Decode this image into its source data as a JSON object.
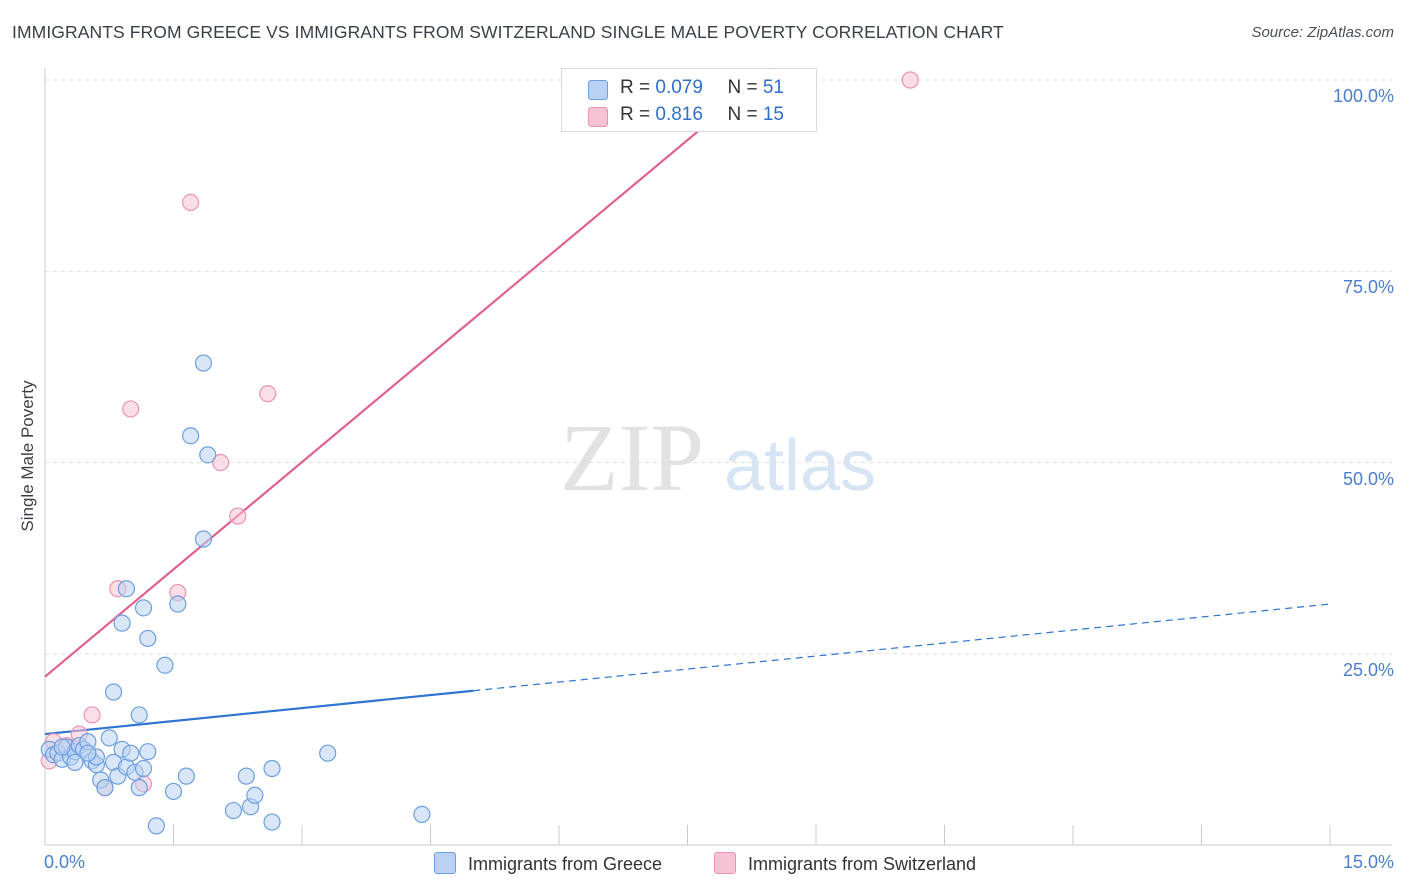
{
  "title": "IMMIGRANTS FROM GREECE VS IMMIGRANTS FROM SWITZERLAND SINGLE MALE POVERTY CORRELATION CHART",
  "source": "Source: ZipAtlas.com",
  "watermark": {
    "zip": "ZIP",
    "atlas": "atlas"
  },
  "colors": {
    "greece": "#2f74d0",
    "greece_fill": "#b9d2f3",
    "switzerland": "#e0608f",
    "switzerland_fill": "#f7c2d3",
    "axis_text": "#4a7fd0"
  },
  "legend": {
    "rows": [
      {
        "r_label": "R = ",
        "r_value": "0.079",
        "n_label": "N = ",
        "n_value": "51"
      },
      {
        "r_label": "R = ",
        "r_value": "0.816",
        "n_label": "N = ",
        "n_value": "15"
      }
    ]
  },
  "chart_data": {
    "type": "scatter",
    "xlabel": "",
    "ylabel": "Single Male Poverty",
    "xlim": [
      0,
      15
    ],
    "ylim": [
      0,
      100
    ],
    "x_tick_labels": [
      "0.0%",
      "15.0%"
    ],
    "y_tick_labels": [
      "25.0%",
      "50.0%",
      "75.0%",
      "100.0%"
    ],
    "y_ticks": [
      25,
      50,
      75,
      100
    ],
    "series": [
      {
        "name": "Immigrants from Greece",
        "points": [
          [
            0.05,
            12.5
          ],
          [
            0.1,
            11.8
          ],
          [
            0.15,
            12.0
          ],
          [
            0.2,
            11.2
          ],
          [
            0.25,
            12.8
          ],
          [
            0.3,
            11.5
          ],
          [
            0.35,
            12.2
          ],
          [
            0.4,
            13.0
          ],
          [
            0.45,
            12.5
          ],
          [
            0.5,
            13.5
          ],
          [
            0.55,
            11.0
          ],
          [
            0.6,
            10.5
          ],
          [
            0.65,
            8.5
          ],
          [
            0.7,
            7.5
          ],
          [
            0.75,
            14.0
          ],
          [
            0.8,
            10.8
          ],
          [
            0.85,
            9.0
          ],
          [
            0.9,
            12.5
          ],
          [
            0.95,
            10.2
          ],
          [
            1.0,
            12.0
          ],
          [
            1.05,
            9.5
          ],
          [
            1.1,
            7.5
          ],
          [
            1.15,
            10.0
          ],
          [
            1.2,
            12.2
          ],
          [
            0.8,
            20.0
          ],
          [
            1.1,
            17.0
          ],
          [
            0.9,
            29.0
          ],
          [
            0.95,
            33.5
          ],
          [
            1.15,
            31.0
          ],
          [
            1.2,
            27.0
          ],
          [
            1.4,
            23.5
          ],
          [
            1.55,
            31.5
          ],
          [
            1.7,
            53.5
          ],
          [
            1.85,
            40.0
          ],
          [
            1.9,
            51.0
          ],
          [
            1.85,
            63.0
          ],
          [
            1.3,
            2.5
          ],
          [
            1.5,
            7.0
          ],
          [
            1.65,
            9.0
          ],
          [
            2.2,
            4.5
          ],
          [
            2.35,
            9.0
          ],
          [
            2.4,
            5.0
          ],
          [
            2.45,
            6.5
          ],
          [
            2.65,
            3.0
          ],
          [
            2.65,
            10.0
          ],
          [
            3.3,
            12.0
          ],
          [
            4.4,
            4.0
          ],
          [
            0.6,
            11.5
          ],
          [
            0.35,
            10.8
          ],
          [
            0.2,
            12.8
          ],
          [
            0.5,
            12.0
          ]
        ],
        "trend": {
          "x0": 0,
          "y0": 14.5,
          "x1": 15,
          "y1": 31.5,
          "solid_until_x": 5.0
        }
      },
      {
        "name": "Immigrants from Switzerland",
        "points": [
          [
            0.05,
            11.0
          ],
          [
            0.1,
            13.5
          ],
          [
            0.25,
            13.0
          ],
          [
            0.4,
            14.5
          ],
          [
            0.55,
            17.0
          ],
          [
            0.7,
            7.5
          ],
          [
            0.85,
            33.5
          ],
          [
            1.0,
            57.0
          ],
          [
            1.15,
            8.0
          ],
          [
            1.55,
            33.0
          ],
          [
            1.7,
            84.0
          ],
          [
            2.05,
            50.0
          ],
          [
            2.25,
            43.0
          ],
          [
            2.6,
            59.0
          ],
          [
            10.1,
            100.0
          ]
        ],
        "trend": {
          "x0": 0,
          "y0": 22.0,
          "x1": 8.5,
          "y1": 101.5
        }
      }
    ]
  }
}
